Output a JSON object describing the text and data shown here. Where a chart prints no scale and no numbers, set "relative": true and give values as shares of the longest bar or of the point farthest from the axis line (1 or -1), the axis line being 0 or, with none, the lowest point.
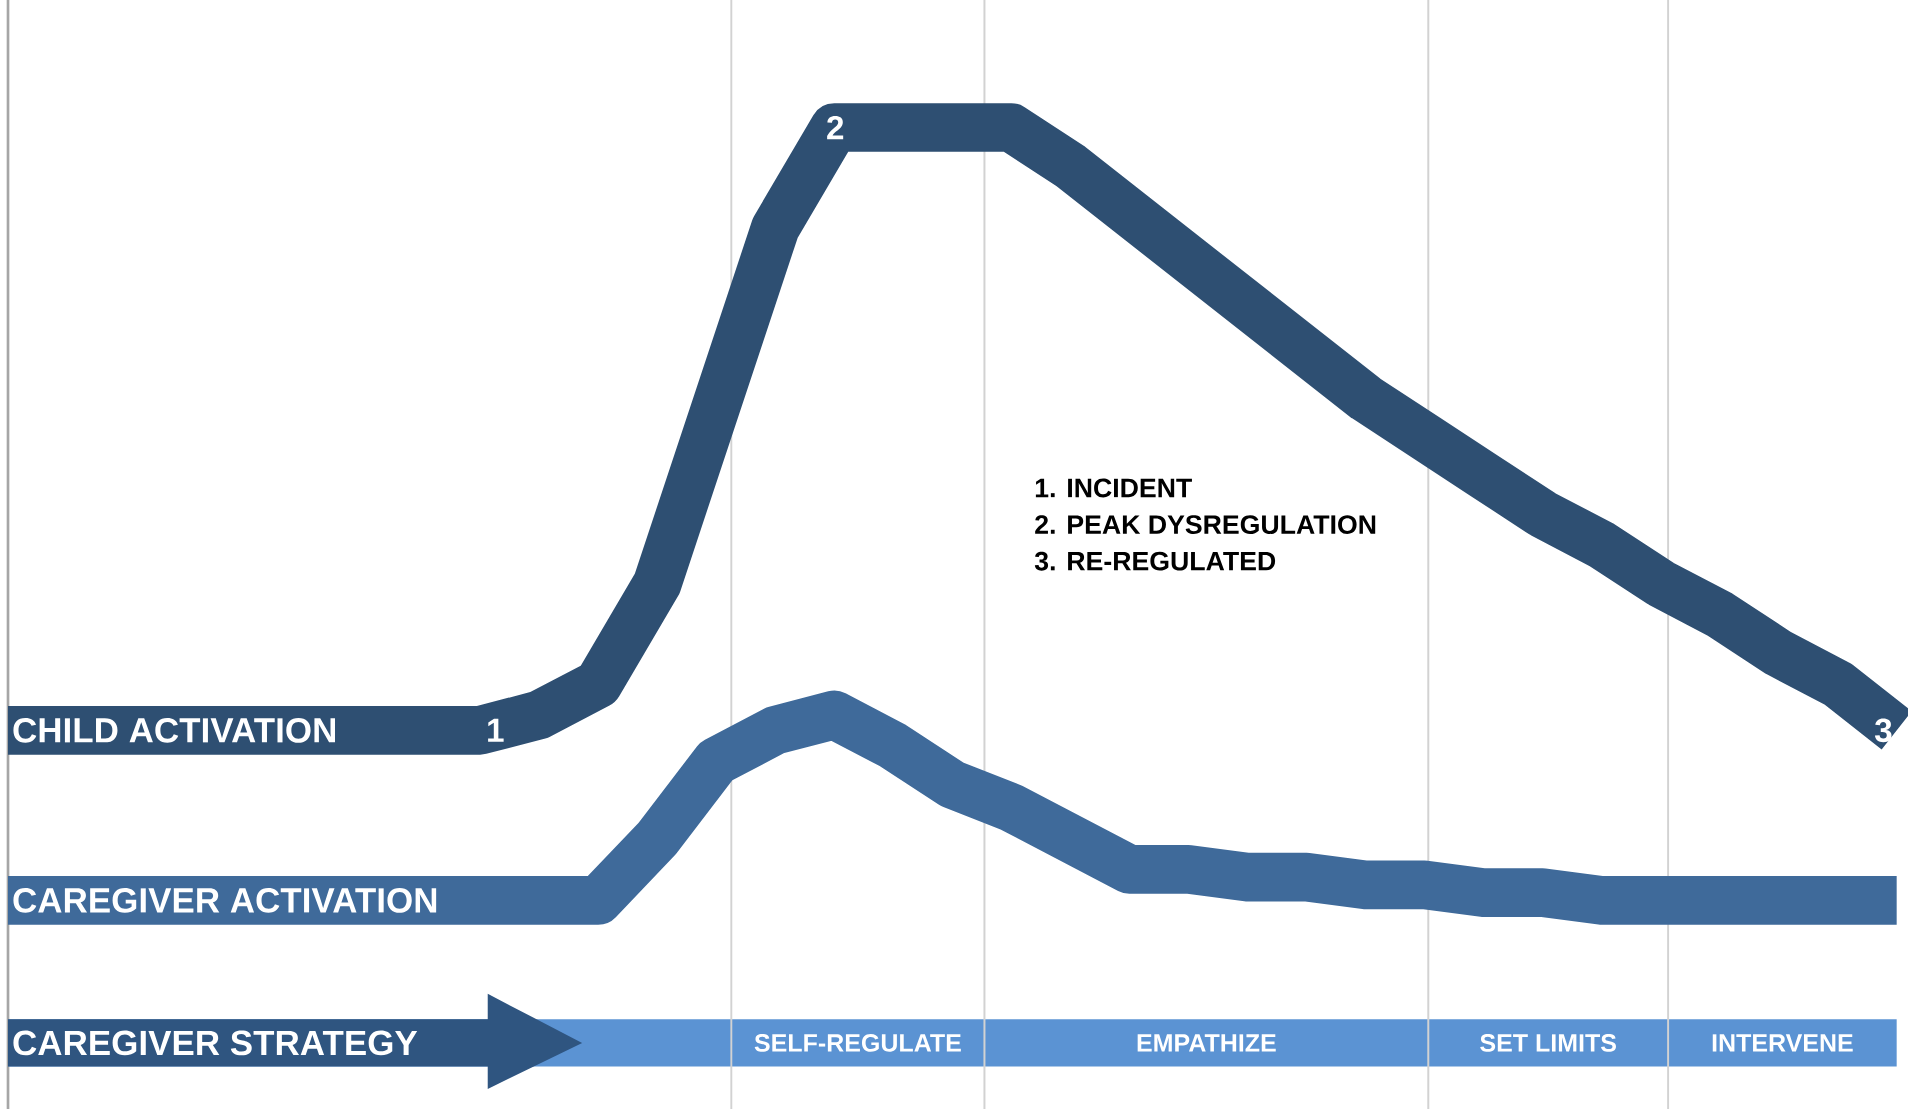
{
  "chart_data": {
    "type": "line",
    "relative": true,
    "categories": [
      null,
      null,
      null,
      null,
      null,
      null,
      null,
      null,
      null,
      null,
      null,
      null,
      null,
      null,
      null,
      null,
      null,
      null,
      null,
      null,
      null,
      null,
      null,
      null,
      null,
      null,
      null,
      null,
      null,
      null,
      null,
      null,
      null
    ],
    "series": [
      {
        "name": "CHILD ACTIVATION",
        "color": "#2e4f72",
        "values": [
          0.22,
          0.22,
          0.22,
          0.22,
          0.22,
          0.22,
          0.22,
          0.22,
          0.22,
          0.24,
          0.28,
          0.41,
          0.64,
          0.87,
          1,
          1,
          1,
          1,
          0.95,
          0.89,
          0.83,
          0.77,
          0.71,
          0.65,
          0.6,
          0.55,
          0.5,
          0.46,
          0.41,
          0.37,
          0.32,
          0.28,
          0.22
        ]
      },
      {
        "name": "CAREGIVER ACTIVATION",
        "color": "#3f6a9a",
        "values": [
          0,
          0,
          0,
          0,
          0,
          0,
          0,
          0,
          0,
          0,
          0,
          0.08,
          0.18,
          0.22,
          0.24,
          0.2,
          0.15,
          0.12,
          0.08,
          0.04,
          0.04,
          0.03,
          0.03,
          0.02,
          0.02,
          0.01,
          0.01,
          0,
          0,
          0,
          0,
          0,
          0
        ]
      }
    ],
    "annotations": [
      {
        "text": "1",
        "y": 0.22
      },
      {
        "text": "2",
        "y": 1
      },
      {
        "text": "3",
        "y": 0.22
      },
      "1. INCIDENT",
      "2. PEAK DYSREGULATION",
      "3. RE-REGULATED",
      "CAREGIVER STRATEGY",
      "SELF-REGULATE",
      "EMPATHIZE",
      "SET LIMITS",
      "INTERVENE"
    ]
  }
}
